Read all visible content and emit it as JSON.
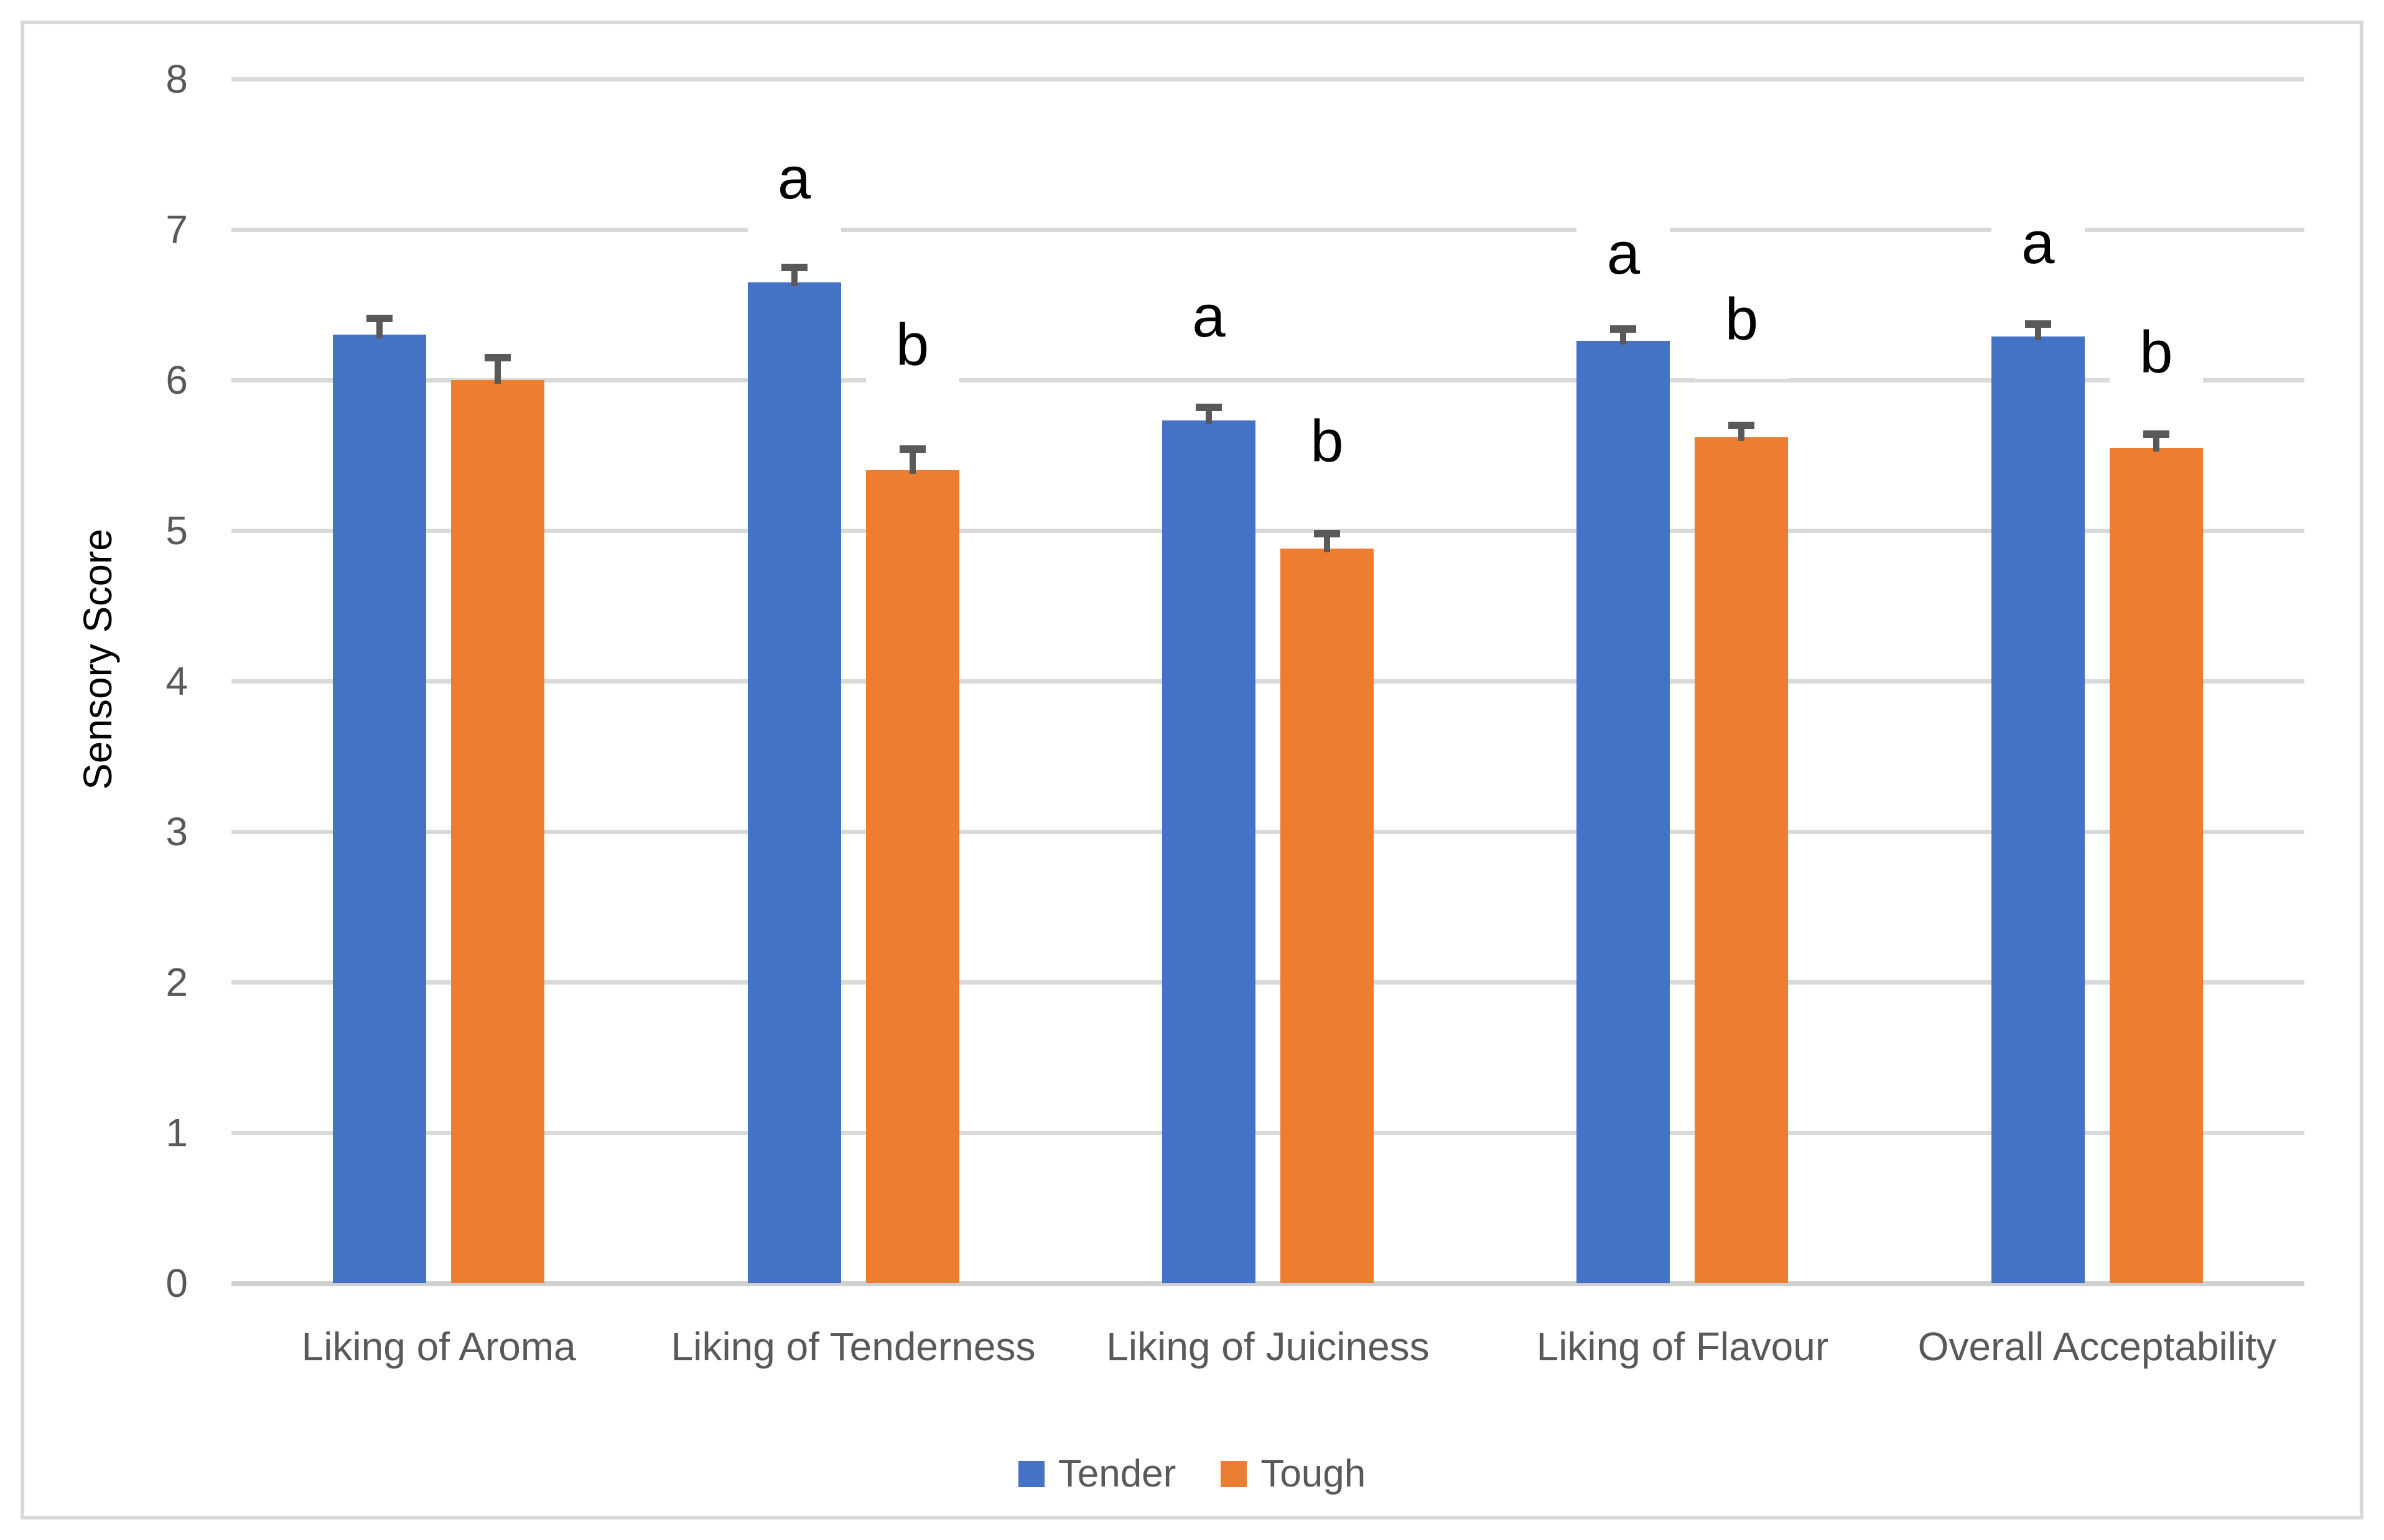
{
  "chart_data": {
    "type": "bar",
    "title": "",
    "xlabel": "",
    "ylabel": "Sensory Score",
    "ylim": [
      0,
      8
    ],
    "yticks": [
      "0",
      "1",
      "2",
      "3",
      "4",
      "5",
      "6",
      "7",
      "8"
    ],
    "grid": "horizontal",
    "legend_position": "bottom-center",
    "categories": [
      "Liking of Aroma",
      "Liking of Tenderness",
      "Liking of Juiciness",
      "Liking of Flavour",
      "Overall Acceptability"
    ],
    "series": [
      {
        "name": "Tender",
        "color": "#4472C4",
        "values": [
          6.3,
          6.65,
          5.73,
          6.26,
          6.29
        ],
        "errors": [
          0.11,
          0.1,
          0.09,
          0.08,
          0.08
        ],
        "letters": [
          null,
          {
            "text": "a",
            "y": 7.34
          },
          {
            "text": "a",
            "y": 6.42
          },
          {
            "text": "a",
            "y": 6.84
          },
          {
            "text": "a",
            "y": 6.91
          }
        ]
      },
      {
        "name": "Tough",
        "color": "#ED7D31",
        "values": [
          6.0,
          5.4,
          4.88,
          5.62,
          5.55
        ],
        "errors": [
          0.15,
          0.14,
          0.1,
          0.08,
          0.09
        ],
        "letters": [
          null,
          {
            "text": "b",
            "y": 6.23
          },
          {
            "text": "b",
            "y": 5.59
          },
          {
            "text": "b",
            "y": 6.4
          },
          {
            "text": "b",
            "y": 6.18
          }
        ]
      }
    ]
  },
  "colors": {
    "background": "#FFFFFF",
    "frame_border": "#D9D9D9",
    "gridline": "#D9D9D9",
    "baseline": "#D0D0D0",
    "axis_text": "#595959",
    "error_bar": "#595959",
    "sig_letter": "#000000"
  }
}
